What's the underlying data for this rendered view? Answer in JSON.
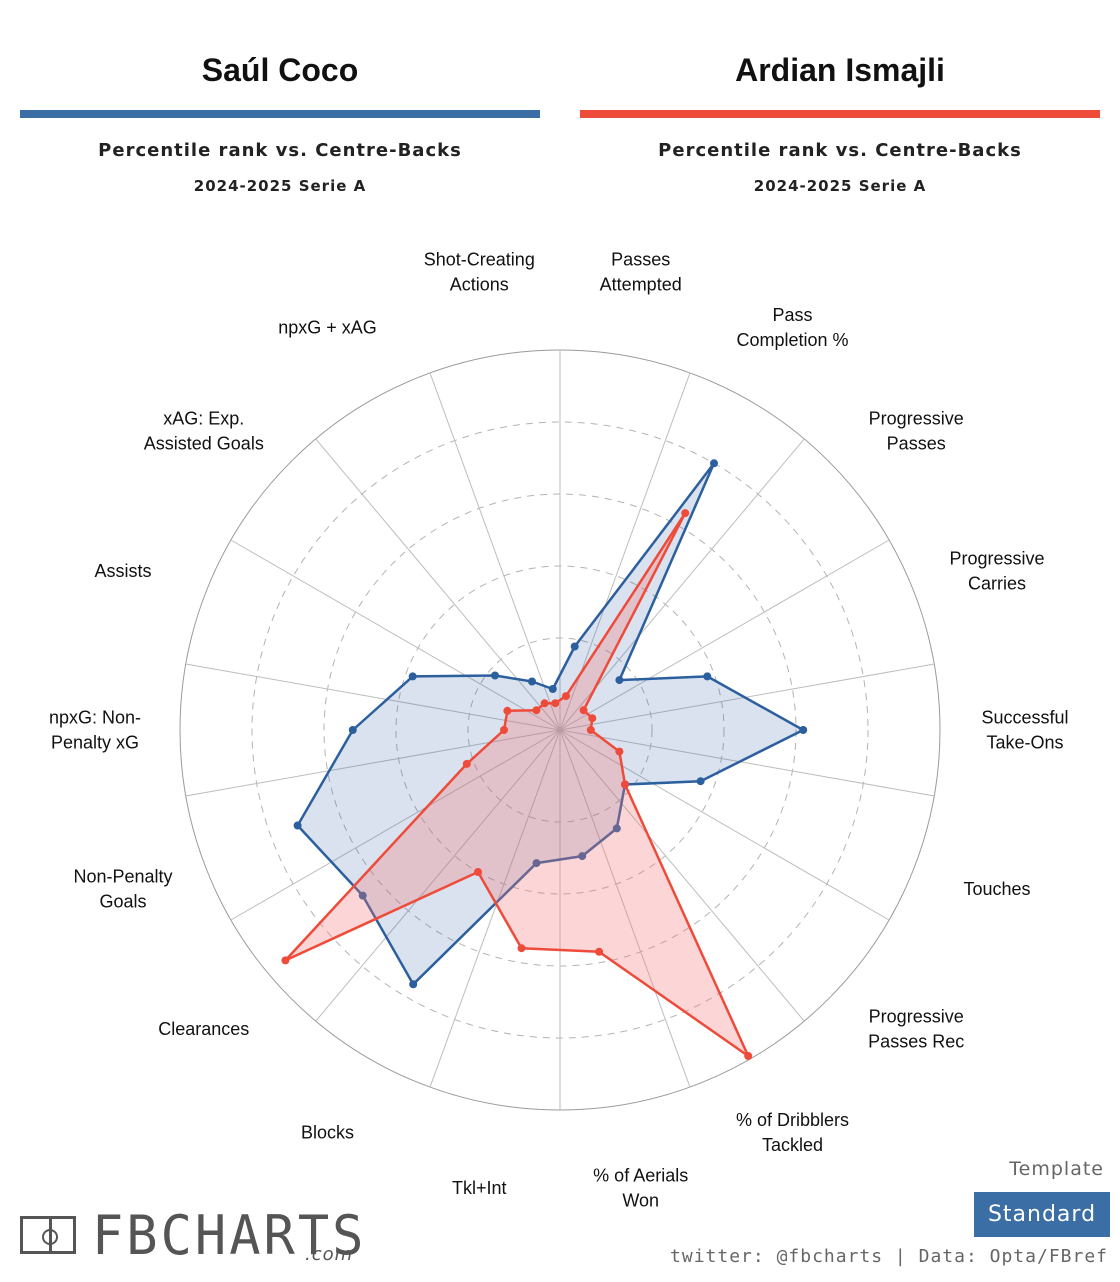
{
  "players": [
    {
      "name": "Saúl Coco",
      "color": "#2c5f9e",
      "fill": "rgba(44,95,158,0.18)",
      "subtitle": "Percentile rank vs. Centre-Backs",
      "season": "2024-2025 Serie A"
    },
    {
      "name": "Ardian Ismajli",
      "color": "#ee4b3a",
      "fill": "rgba(245,120,120,0.30)",
      "subtitle": "Percentile rank vs. Centre-Backs",
      "season": "2024-2025 Serie A"
    }
  ],
  "template": {
    "label": "Template",
    "value": "Standard"
  },
  "footer": "twitter: @fbcharts | Data: Opta/FBref",
  "logo": {
    "text": "FBCHARTS",
    "suffix": ".com"
  },
  "chart_data": {
    "type": "radar",
    "axes": [
      "Passes Attempted",
      "Pass Completion %",
      "Progressive Passes",
      "Progressive Carries",
      "Successful Take-Ons",
      "Touches",
      "Progressive Passes Rec",
      "% of Dribblers Tackled",
      "% of Aerials Won",
      "Tkl+Int",
      "Blocks",
      "Clearances",
      "Non-Penalty Goals",
      "npxG: Non-Penalty xG",
      "Assists",
      "xAG: Exp. Assisted Goals",
      "npxG + xAG",
      "Shot-Creating Actions"
    ],
    "axis_label_lines": [
      [
        "Passes",
        "Attempted"
      ],
      [
        "Pass",
        "Completion %"
      ],
      [
        "Progressive",
        "Passes"
      ],
      [
        "Progressive",
        "Carries"
      ],
      [
        "Successful",
        "Take-Ons"
      ],
      [
        "Touches"
      ],
      [
        "Progressive",
        "Passes Rec"
      ],
      [
        "% of Dribblers",
        "Tackled"
      ],
      [
        "% of Aerials",
        "Won"
      ],
      [
        "Tkl+Int"
      ],
      [
        "Blocks"
      ],
      [
        "Clearances"
      ],
      [
        "Non-Penalty",
        "Goals"
      ],
      [
        "npxG: Non-",
        "Penalty xG"
      ],
      [
        "Assists"
      ],
      [
        "xAG: Exp.",
        "Assisted Goals"
      ],
      [
        "npxG + xAG"
      ],
      [
        "Shot-Creating",
        "Actions"
      ]
    ],
    "series": [
      {
        "name": "Saúl Coco",
        "values": [
          18,
          80,
          16,
          38,
          62,
          36,
          18,
          26,
          30,
          32,
          76,
          66,
          72,
          52,
          38,
          18,
          10,
          6
        ]
      },
      {
        "name": "Ardian Ismajli",
        "values": [
          4,
          64,
          3,
          4,
          3,
          12,
          18,
          99,
          57,
          56,
          40,
          94,
          22,
          10,
          10,
          3,
          3,
          2
        ]
      }
    ],
    "rlim": [
      0,
      100
    ],
    "grid": {
      "rings": [
        20,
        40,
        60,
        80,
        100
      ],
      "solid_ring": 100
    }
  }
}
